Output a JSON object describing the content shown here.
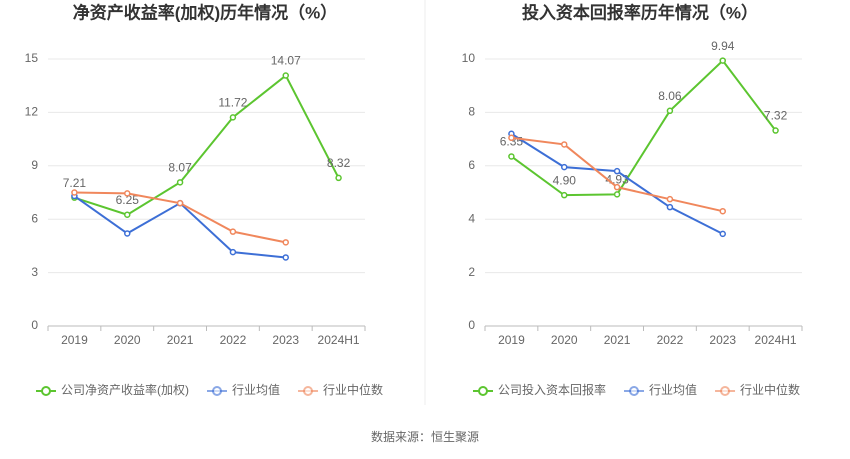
{
  "chart_data": [
    {
      "type": "line",
      "title": "净资产收益率(加权)历年情况（%）",
      "categories": [
        "2019",
        "2020",
        "2021",
        "2022",
        "2023",
        "2024H1"
      ],
      "ylim": [
        0,
        15
      ],
      "yticks": [
        0,
        3,
        6,
        9,
        12,
        15
      ],
      "grid": true,
      "legend": "bottom",
      "series": [
        {
          "name": "公司净资产收益率(加权)",
          "color": "#5cc530",
          "values": [
            7.21,
            6.25,
            8.07,
            11.72,
            14.07,
            8.32
          ],
          "value_labels": [
            "7.21",
            "6.25",
            "8.07",
            "11.72",
            "14.07",
            "8.32"
          ]
        },
        {
          "name": "行业均值",
          "color": "#3d6fd6",
          "values": [
            7.3,
            5.2,
            6.9,
            4.15,
            3.85,
            null
          ]
        },
        {
          "name": "行业中位数",
          "color": "#f0875c",
          "values": [
            7.5,
            7.45,
            6.9,
            5.3,
            4.7,
            null
          ]
        }
      ]
    },
    {
      "type": "line",
      "title": "投入资本回报率历年情况（%）",
      "categories": [
        "2019",
        "2020",
        "2021",
        "2022",
        "2023",
        "2024H1"
      ],
      "ylim": [
        0,
        10
      ],
      "yticks": [
        0,
        2,
        4,
        6,
        8,
        10
      ],
      "grid": true,
      "legend": "bottom",
      "series": [
        {
          "name": "公司投入资本回报率",
          "color": "#5cc530",
          "values": [
            6.35,
            4.9,
            4.93,
            8.06,
            9.94,
            7.32
          ],
          "value_labels": [
            "6.35",
            "4.90",
            "4.93",
            "8.06",
            "9.94",
            "7.32"
          ]
        },
        {
          "name": "行业均值",
          "color": "#3d6fd6",
          "values": [
            7.2,
            5.95,
            5.8,
            4.45,
            3.45,
            null
          ]
        },
        {
          "name": "行业中位数",
          "color": "#f0875c",
          "values": [
            7.05,
            6.8,
            5.2,
            4.75,
            4.3,
            null
          ]
        }
      ]
    }
  ],
  "source": "数据来源：恒生聚源"
}
